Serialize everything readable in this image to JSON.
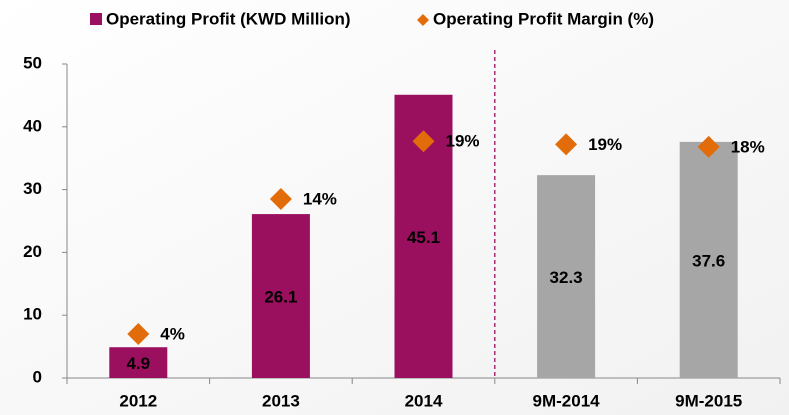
{
  "chart_data": {
    "type": "bar",
    "categories": [
      "2012",
      "2013",
      "2014",
      "9M-2014",
      "9M-2015"
    ],
    "series": [
      {
        "name": "Operating Profit (KWD Million)",
        "type": "bar",
        "colors": [
          "#9b0f5f",
          "#9b0f5f",
          "#9b0f5f",
          "#a6a6a6",
          "#a6a6a6"
        ],
        "values": [
          4.9,
          26.1,
          45.1,
          32.3,
          37.6
        ]
      },
      {
        "name": "Operating Profit Margin (%)",
        "type": "scatter",
        "axis": "y2",
        "color": "#e36c0a",
        "values": [
          3.5,
          14.25,
          18.85,
          18.6,
          18.4
        ],
        "value_labels": [
          "4%",
          "14%",
          "19%",
          "19%",
          "18%"
        ]
      }
    ],
    "ylim": [
      0,
      50
    ],
    "yticks": [
      0,
      10,
      20,
      30,
      40,
      50
    ],
    "y2lim": [
      0,
      25
    ]
  }
}
